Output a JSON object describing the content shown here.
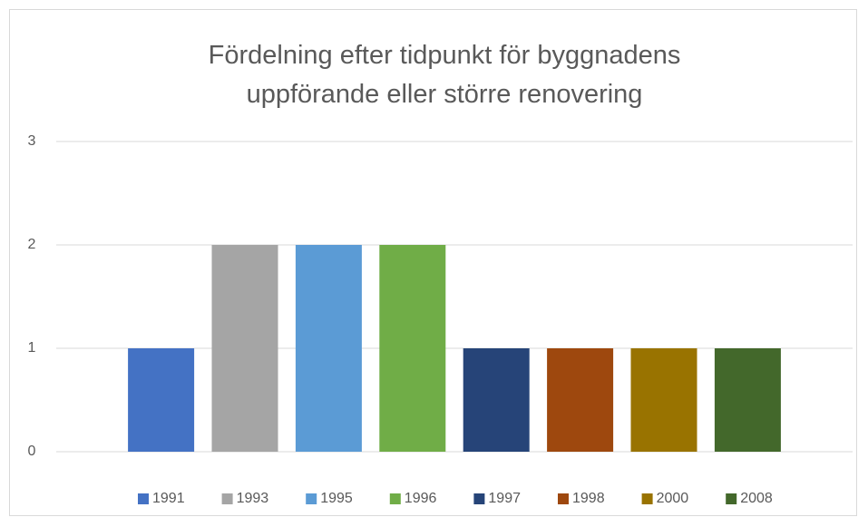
{
  "chart_data": {
    "type": "bar",
    "title": "Fördelning efter tidpunkt för byggnadens uppförande eller större renovering",
    "categories": [
      null
    ],
    "series": [
      {
        "name": "1991",
        "color": "#4472c4",
        "values": [
          1
        ]
      },
      {
        "name": "1993",
        "color": "#a5a5a5",
        "values": [
          2
        ]
      },
      {
        "name": "1995",
        "color": "#5b9bd5",
        "values": [
          2
        ]
      },
      {
        "name": "1996",
        "color": "#70ad47",
        "values": [
          2
        ]
      },
      {
        "name": "1997",
        "color": "#264478",
        "values": [
          1
        ]
      },
      {
        "name": "1998",
        "color": "#9e480e",
        "values": [
          1
        ]
      },
      {
        "name": "2000",
        "color": "#997300",
        "values": [
          1
        ]
      },
      {
        "name": "2008",
        "color": "#43682b",
        "values": [
          1
        ]
      }
    ],
    "ylim": [
      0,
      3
    ],
    "yticks": [
      0,
      1,
      2,
      3
    ],
    "grid": true,
    "legend": "bottom"
  }
}
